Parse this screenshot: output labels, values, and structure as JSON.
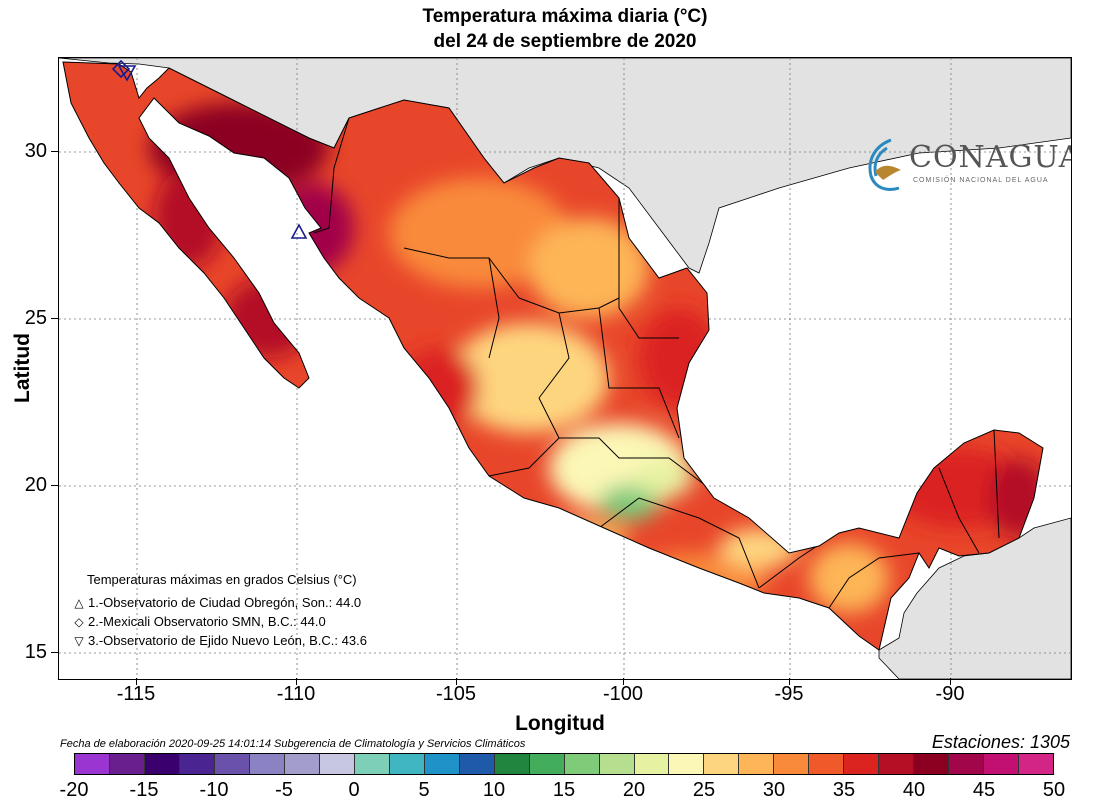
{
  "title": {
    "line1": "Temperatura máxima diaria (°C)",
    "line2": "del 24 de septiembre de 2020"
  },
  "axes": {
    "x_label": "Longitud",
    "y_label": "Latitud",
    "lon_ticks": [
      "-115",
      "-110",
      "-105",
      "-100",
      "-95",
      "-90"
    ],
    "lat_ticks": [
      "30",
      "25",
      "20",
      "15"
    ],
    "lon_range": [
      -117,
      -86.5
    ],
    "lat_range": [
      14.3,
      32.8
    ]
  },
  "logo": {
    "name": "CONAGUA",
    "subtitle": "COMISIÓN NACIONAL DEL AGUA"
  },
  "legend": {
    "title": "Temperaturas máximas en grados Celsius (°C)",
    "stations": [
      {
        "symbol": "△",
        "icon": "triangle-up",
        "text": "1.-Observatorio de Ciudad Obregón, Son.: 44.0",
        "lon": -110.0,
        "lat": 27.5
      },
      {
        "symbol": "◇",
        "icon": "diamond",
        "text": "2.-Mexicali Observatorio SMN, B.C.: 44.0",
        "lon": -115.4,
        "lat": 32.6
      },
      {
        "symbol": "▽",
        "icon": "triangle-down",
        "text": "3.-Observatorio de Ejido Nuevo León, B.C.: 43.6",
        "lon": -115.2,
        "lat": 32.4
      }
    ]
  },
  "footer": {
    "date_text": "Fecha de elaboración 2020-09-25 14:01:14 Subgerencia de Climatología y Servicios Climáticos",
    "stations_text": "Estaciones:  1305"
  },
  "colorbar": {
    "labels": [
      "-20",
      "-15",
      "-10",
      "-5",
      "0",
      "5",
      "10",
      "15",
      "20",
      "25",
      "30",
      "35",
      "40",
      "45",
      "50"
    ],
    "colors": [
      "#9a35d2",
      "#6a1f8e",
      "#3a006e",
      "#4a2592",
      "#6a52ab",
      "#8a82c2",
      "#a39dcb",
      "#c7c6e3",
      "#7ecfb8",
      "#3fb6c2",
      "#1f92c8",
      "#1e5aa8",
      "#21843f",
      "#42ad5a",
      "#7ecb7a",
      "#b5df8f",
      "#e6f2a2",
      "#fbf7b6",
      "#fed57f",
      "#fdb557",
      "#f98a3b",
      "#f05a2b",
      "#db2320",
      "#b40f25",
      "#8b0020",
      "#a1064a",
      "#c20f72",
      "#d22585"
    ]
  }
}
